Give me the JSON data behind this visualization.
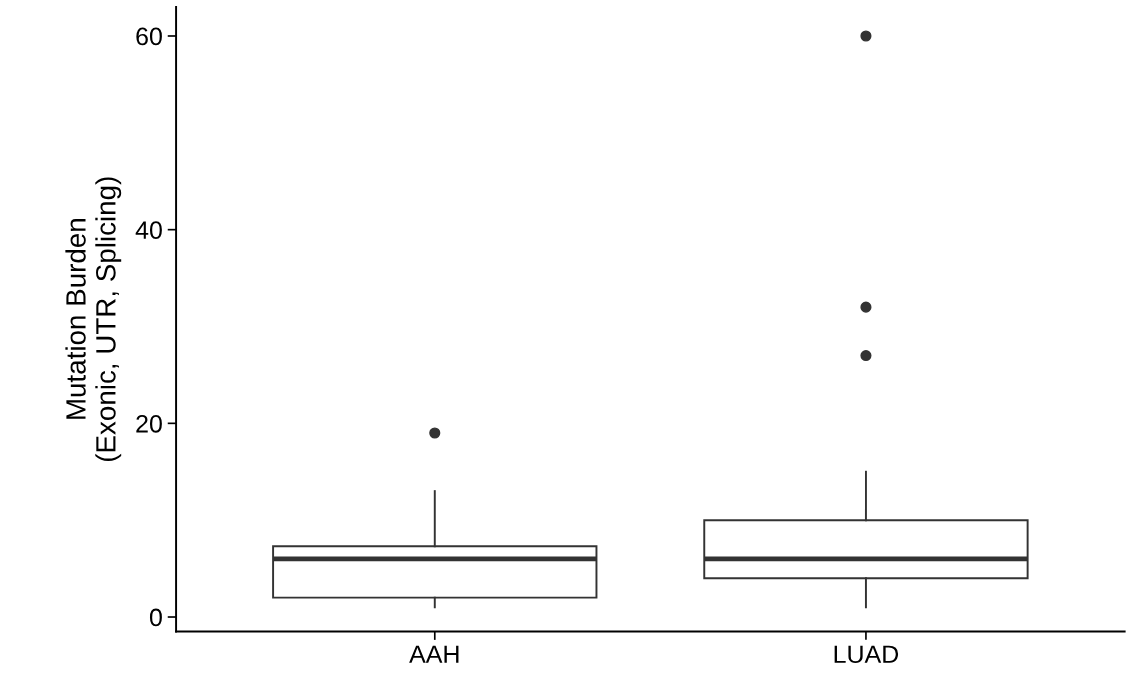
{
  "chart_data": {
    "type": "box",
    "ylabel": "Mutation Burden\n(Exonic, UTR, Splicing)",
    "categories": [
      "AAH",
      "LUAD"
    ],
    "boxes": [
      {
        "low": 1,
        "q1": 2,
        "median": 6,
        "q3": 7.3,
        "high": 13,
        "outliers": [
          19
        ]
      },
      {
        "low": 1,
        "q1": 4,
        "median": 6,
        "q3": 10,
        "high": 15,
        "outliers": [
          27,
          32,
          60
        ]
      }
    ],
    "color": "#333333",
    "ylim": [
      -1.5,
      63
    ],
    "yticks": [
      0,
      20,
      40,
      60
    ],
    "grid": false
  }
}
